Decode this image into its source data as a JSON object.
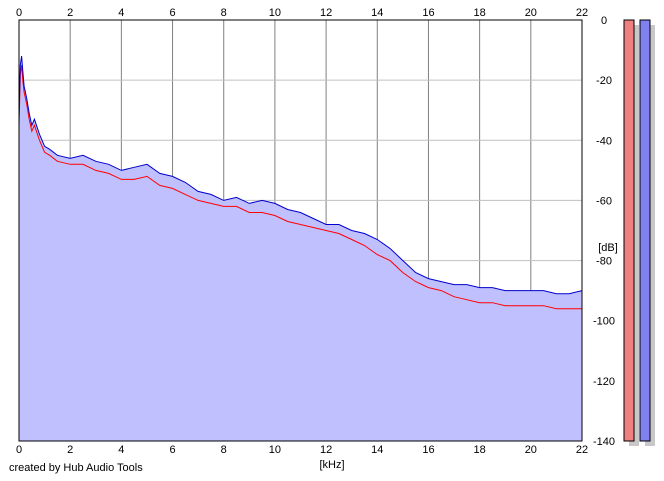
{
  "chart_data": {
    "type": "area",
    "xlabel": "[kHz]",
    "ylabel": "[dB]",
    "xlim": [
      0,
      22
    ],
    "ylim": [
      -140,
      0
    ],
    "x_ticks": [
      "0",
      "2",
      "4",
      "6",
      "8",
      "10",
      "12",
      "14",
      "16",
      "18",
      "20",
      "22"
    ],
    "y_ticks": [
      "0",
      "-20",
      "-40",
      "-60",
      "-80",
      "-100",
      "-120",
      "-140"
    ],
    "grid": true,
    "fill_color": "#c0c0ff",
    "series": [
      {
        "color": "#ff0000",
        "x": [
          0,
          0.05,
          0.1,
          0.15,
          0.2,
          0.3,
          0.4,
          0.5,
          0.6,
          0.8,
          1,
          1.2,
          1.5,
          2,
          2.5,
          3,
          3.5,
          4,
          4.5,
          5,
          5.5,
          6,
          6.5,
          7,
          7.5,
          8,
          8.5,
          9,
          9.5,
          10,
          10.5,
          11,
          11.5,
          12,
          12.5,
          13,
          13.5,
          14,
          14.5,
          15,
          15.5,
          16,
          16.5,
          17,
          17.5,
          18,
          18.5,
          19,
          19.5,
          20,
          20.5,
          21,
          21.5,
          22
        ],
        "y": [
          -35,
          -18,
          -15,
          -20,
          -24,
          -28,
          -33,
          -37,
          -35,
          -40,
          -44,
          -45,
          -47,
          -48,
          -48,
          -50,
          -51,
          -53,
          -53,
          -52,
          -55,
          -56,
          -58,
          -60,
          -61,
          -62,
          -62,
          -64,
          -64,
          -65,
          -67,
          -68,
          -69,
          -70,
          -71,
          -73,
          -75,
          -78,
          -80,
          -84,
          -87,
          -89,
          -90,
          -92,
          -93,
          -94,
          -94,
          -95,
          -95,
          -95,
          -95,
          -96,
          -96,
          -96
        ]
      },
      {
        "color": "#0000cc",
        "x": [
          0,
          0.05,
          0.1,
          0.15,
          0.2,
          0.3,
          0.4,
          0.5,
          0.6,
          0.8,
          1,
          1.2,
          1.5,
          2,
          2.5,
          3,
          3.5,
          4,
          4.5,
          5,
          5.5,
          6,
          6.5,
          7,
          7.5,
          8,
          8.5,
          9,
          9.5,
          10,
          10.5,
          11,
          11.5,
          12,
          12.5,
          13,
          13.5,
          14,
          14.5,
          15,
          15.5,
          16,
          16.5,
          17,
          17.5,
          18,
          18.5,
          19,
          19.5,
          20,
          20.5,
          21,
          21.5,
          22
        ],
        "y": [
          -32,
          -15,
          -12,
          -17,
          -22,
          -26,
          -31,
          -35,
          -33,
          -38,
          -42,
          -43,
          -45,
          -46,
          -45,
          -47,
          -48,
          -50,
          -49,
          -48,
          -51,
          -52,
          -54,
          -57,
          -58,
          -60,
          -59,
          -61,
          -60,
          -61,
          -63,
          -64,
          -66,
          -68,
          -68,
          -70,
          -71,
          -73,
          -76,
          -80,
          -84,
          -86,
          -87,
          -88,
          -88,
          -89,
          -89,
          -90,
          -90,
          -90,
          -90,
          -91,
          -91,
          -90
        ]
      }
    ],
    "level_meters": [
      {
        "color": "#f08080",
        "level_db": 0
      },
      {
        "color": "#8080f0",
        "level_db": 0
      }
    ]
  },
  "footer": {
    "credit": "created by Hub Audio Tools"
  }
}
